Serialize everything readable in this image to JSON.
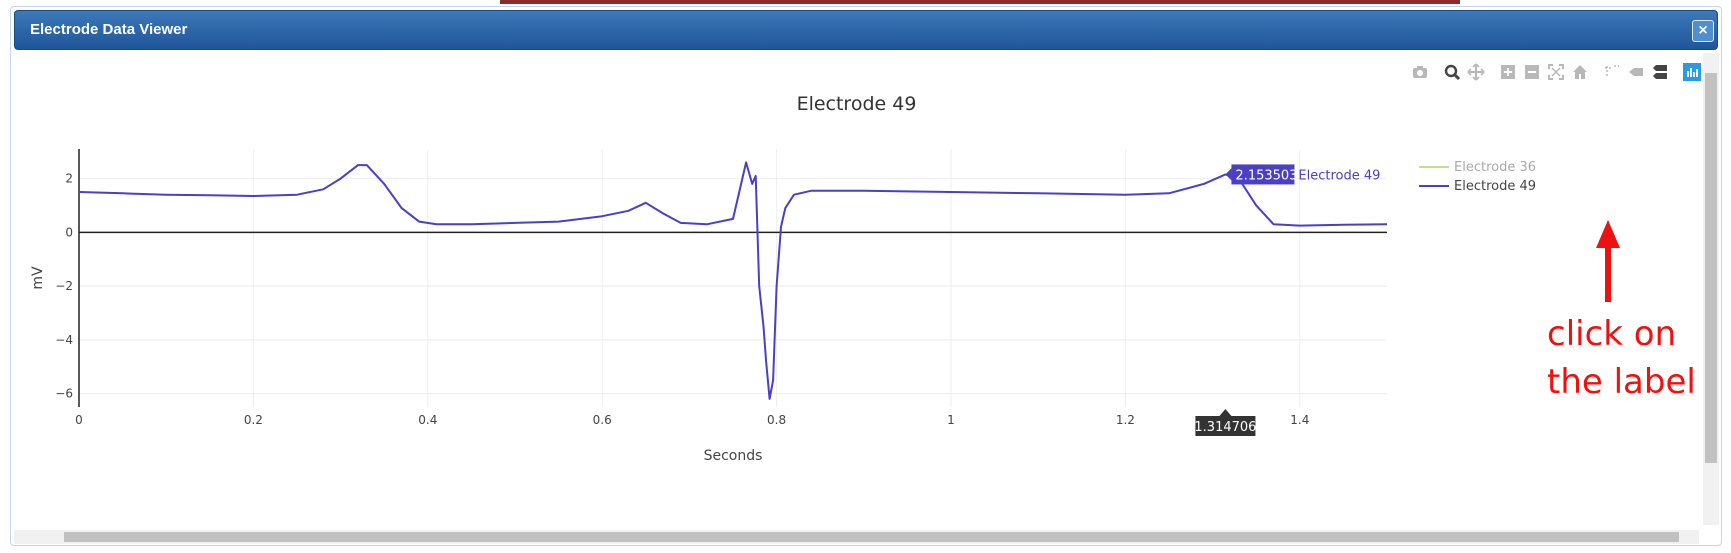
{
  "dialog": {
    "title": "Electrode Data Viewer",
    "close_icon": "close-icon"
  },
  "modebar": [
    {
      "name": "camera-icon",
      "active": false
    },
    {
      "name": "zoom-icon",
      "active": true
    },
    {
      "name": "pan-icon",
      "active": false
    },
    {
      "name": "zoom-in-icon",
      "active": false
    },
    {
      "name": "zoom-out-icon",
      "active": false
    },
    {
      "name": "autoscale-icon",
      "active": false
    },
    {
      "name": "home-icon",
      "active": false
    },
    {
      "name": "spike-lines-icon",
      "active": false
    },
    {
      "name": "hover-closest-icon",
      "active": false
    },
    {
      "name": "hover-compare-icon",
      "active": false
    },
    {
      "name": "plotly-logo-icon",
      "active": false
    }
  ],
  "chart_data": {
    "type": "line",
    "title": "Electrode 49",
    "xlabel": "Seconds",
    "ylabel": "mV",
    "xlim": [
      0,
      1.5
    ],
    "ylim": [
      -6.5,
      3.1
    ],
    "xticks": [
      "0",
      "0.2",
      "0.4",
      "0.6",
      "0.8",
      "1",
      "1.2",
      "1.4"
    ],
    "xtick_values": [
      0,
      0.2,
      0.4,
      0.6,
      0.8,
      1,
      1.2,
      1.4
    ],
    "yticks": [
      "2",
      "0",
      "−2",
      "−4",
      "−6"
    ],
    "ytick_values": [
      2,
      0,
      -2,
      -4,
      -6
    ],
    "grid": true,
    "legend_position": "right",
    "series": [
      {
        "name": "Electrode 36",
        "color": "#c6dd8e",
        "visible": false,
        "x": [],
        "y": []
      },
      {
        "name": "Electrode 49",
        "color": "#4a3fc6",
        "visible": true,
        "x": [
          0,
          0.05,
          0.1,
          0.15,
          0.2,
          0.25,
          0.28,
          0.3,
          0.32,
          0.33,
          0.35,
          0.37,
          0.39,
          0.41,
          0.45,
          0.5,
          0.55,
          0.6,
          0.63,
          0.65,
          0.67,
          0.69,
          0.72,
          0.75,
          0.765,
          0.772,
          0.776,
          0.78,
          0.785,
          0.788,
          0.792,
          0.796,
          0.8,
          0.805,
          0.81,
          0.82,
          0.84,
          0.9,
          1.0,
          1.1,
          1.2,
          1.25,
          1.29,
          1.314706,
          1.33,
          1.35,
          1.37,
          1.4,
          1.45,
          1.5
        ],
        "y": [
          1.5,
          1.45,
          1.4,
          1.38,
          1.35,
          1.4,
          1.6,
          2.0,
          2.5,
          2.5,
          1.8,
          0.9,
          0.4,
          0.3,
          0.3,
          0.35,
          0.4,
          0.6,
          0.8,
          1.1,
          0.7,
          0.35,
          0.3,
          0.5,
          2.6,
          1.8,
          2.1,
          -2.0,
          -3.5,
          -4.8,
          -6.2,
          -5.5,
          -2.0,
          0.2,
          0.9,
          1.4,
          1.55,
          1.55,
          1.5,
          1.45,
          1.4,
          1.45,
          1.8,
          2.153503,
          2.0,
          1.0,
          0.3,
          0.25,
          0.28,
          0.3
        ]
      }
    ],
    "hover": {
      "x_label": "1.314706",
      "y_label": "2.153503",
      "series": "Electrode 49"
    }
  },
  "annotation": {
    "text_line1": "click on",
    "text_line2": "the label",
    "color": "#ee1111"
  }
}
